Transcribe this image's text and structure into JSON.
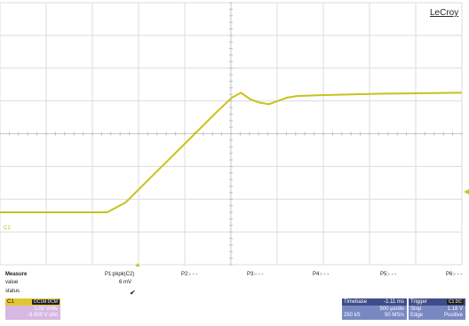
{
  "brand": "LeCroy",
  "chart_data": {
    "type": "line",
    "title": "",
    "xlabel": "",
    "ylabel": "",
    "grid": true,
    "xlim": [
      -4.11,
      0.89
    ],
    "ylim": [
      -2.0,
      6.0
    ],
    "series": [
      {
        "name": "C1",
        "color": "#c8c21e",
        "x": [
          -4.11,
          -2.95,
          -2.75,
          -2.5,
          -2.25,
          -2.0,
          -1.75,
          -1.6,
          -1.5,
          -1.4,
          -1.3,
          -1.2,
          -1.1,
          -1.0,
          -0.9,
          -0.6,
          -0.3,
          0.0,
          0.3,
          0.6,
          0.89
        ],
        "y": [
          -0.4,
          -0.4,
          -0.1,
          0.6,
          1.3,
          2.0,
          2.7,
          3.1,
          3.25,
          3.05,
          2.95,
          2.9,
          3.0,
          3.1,
          3.15,
          3.18,
          3.2,
          3.22,
          3.23,
          3.24,
          3.25
        ]
      }
    ]
  },
  "channel_marker": "C1",
  "measure": {
    "heading": "Measure",
    "labels": [
      "value",
      "status"
    ],
    "params": [
      "P1:pkpk(C2)",
      "P2:- - -",
      "P3:- - -",
      "P4:- - -",
      "P5:- - -",
      "P6:- - -"
    ],
    "p1_value": "6 mV",
    "p1_status": "✔"
  },
  "channel_box": {
    "name": "C1",
    "tag": "DC1M DCM",
    "scale": "1.00 V/div",
    "offset": "-3.000 V ofst"
  },
  "timebase": {
    "label": "Timebase",
    "delay": "-1.11 ms",
    "time_div": "500 µs/div",
    "samples": "250 kS",
    "rate": "50 MS/s"
  },
  "trigger": {
    "label": "Trigger",
    "tag": "C1 DC",
    "mode": "Stop",
    "level": "1.18 V",
    "type": "Edge",
    "slope": "Positive"
  },
  "colors": {
    "trace": "#c8c21e",
    "grid": "#dcdcdc",
    "channel_bg": "#d7b8e2",
    "channel_hdr": "#e2c533",
    "panel_hdr": "#3e4d8a",
    "panel_body": "#7a88c2"
  }
}
